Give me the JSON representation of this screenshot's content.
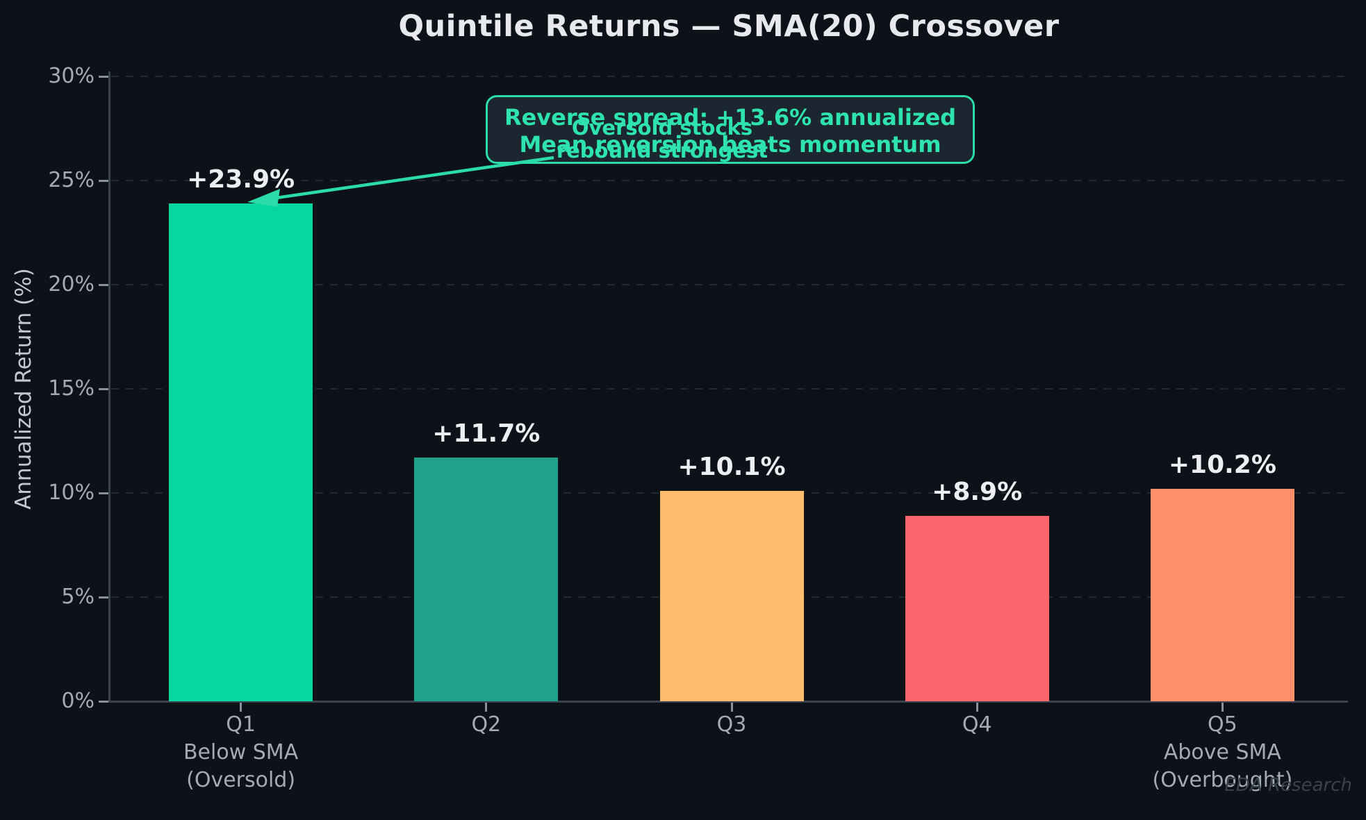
{
  "title": "Quintile Returns — SMA(20) Crossover",
  "watermark": "EDA Research",
  "annotation_box": {
    "line1": "Reverse spread: +13.6% annualized",
    "line2": "Mean reversion beats momentum"
  },
  "annotation_overlay": {
    "line1": "Oversold stocks",
    "line2": "rebound strongest"
  },
  "colors": {
    "background": "#0d1118",
    "accent_teal": "#2bdca8",
    "annotation_box_fill": "#1b2631",
    "title_text": "#e7e9ec",
    "tick_text": "#a5abb4",
    "bar_value_text": "#eceef1"
  },
  "chart_data": {
    "type": "bar",
    "title": "Quintile Returns — SMA(20) Crossover",
    "xlabel": "",
    "ylabel": "Annualized Return (%)",
    "ylim": [
      0,
      30
    ],
    "ytick_step": 5,
    "ytick_suffix": "%",
    "grid": "horizontal dashed",
    "legend_position": "none",
    "categories": [
      "Q1",
      "Q2",
      "Q3",
      "Q4",
      "Q5"
    ],
    "category_tick_lines": [
      [
        "Q1",
        "Below SMA",
        "(Oversold)"
      ],
      [
        "Q2"
      ],
      [
        "Q3"
      ],
      [
        "Q4"
      ],
      [
        "Q5",
        "Above SMA",
        "(Overbought)"
      ]
    ],
    "values": [
      23.9,
      11.7,
      10.1,
      8.9,
      10.2
    ],
    "bar_labels": [
      "+23.9%",
      "+11.7%",
      "+10.1%",
      "+8.9%",
      "+10.2%"
    ],
    "bar_colors": [
      "#06d6a0",
      "#1fa18c",
      "#ffbe6e",
      "#fa686d",
      "#ff8f6b"
    ],
    "annotations": [
      {
        "text": "Reverse spread: +13.6% annualized\nMean reversion beats momentum",
        "style": "teal rounded box, arrow to Q1 bar top"
      },
      {
        "text": "Oversold stocks\nrebound strongest",
        "style": "teal bold text overlapping box"
      }
    ]
  }
}
